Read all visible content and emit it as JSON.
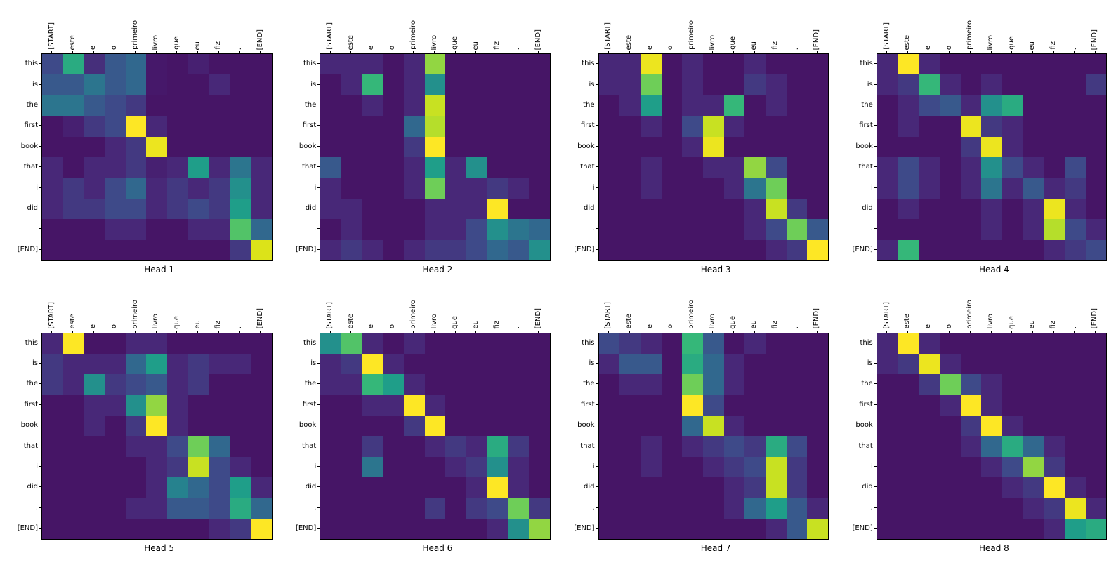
{
  "figure": {
    "background": "#ffffff"
  },
  "chart_data": {
    "type": "heatmap",
    "title": "",
    "layout": {
      "rows": 2,
      "cols": 4,
      "legend": "none",
      "grid": false
    },
    "colormap": "viridis",
    "colormap_stops": [
      "#440154",
      "#482878",
      "#3e4a89",
      "#31688e",
      "#26828e",
      "#1f9e89",
      "#35b779",
      "#6ece58",
      "#b5de2b",
      "#dce319",
      "#fde725"
    ],
    "value_range": [
      0,
      1
    ],
    "x_labels": [
      "[START]",
      "este",
      "e",
      "o",
      "primeiro",
      "livro",
      "que",
      "eu",
      "fiz",
      ".",
      "[END]"
    ],
    "y_labels": [
      "this",
      "is",
      "the",
      "first",
      "book",
      "that",
      "i",
      "did",
      ".",
      "[END]"
    ],
    "heads": [
      {
        "title": "Head 1",
        "values": [
          [
            0.2,
            0.55,
            0.12,
            0.25,
            0.3,
            0.06,
            0.05,
            0.08,
            0.05,
            0.05,
            0.05
          ],
          [
            0.25,
            0.25,
            0.35,
            0.25,
            0.3,
            0.06,
            0.05,
            0.05,
            0.1,
            0.05,
            0.05
          ],
          [
            0.35,
            0.35,
            0.25,
            0.2,
            0.15,
            0.05,
            0.05,
            0.05,
            0.05,
            0.05,
            0.05
          ],
          [
            0.05,
            0.08,
            0.15,
            0.2,
            1.0,
            0.1,
            0.05,
            0.05,
            0.05,
            0.05,
            0.05
          ],
          [
            0.05,
            0.05,
            0.05,
            0.1,
            0.15,
            0.95,
            0.05,
            0.05,
            0.05,
            0.05,
            0.05
          ],
          [
            0.1,
            0.05,
            0.1,
            0.1,
            0.15,
            0.08,
            0.1,
            0.5,
            0.1,
            0.35,
            0.1
          ],
          [
            0.1,
            0.15,
            0.1,
            0.2,
            0.3,
            0.1,
            0.15,
            0.1,
            0.15,
            0.45,
            0.1
          ],
          [
            0.1,
            0.15,
            0.15,
            0.2,
            0.2,
            0.1,
            0.15,
            0.2,
            0.15,
            0.5,
            0.1
          ],
          [
            0.05,
            0.05,
            0.05,
            0.1,
            0.1,
            0.05,
            0.05,
            0.1,
            0.1,
            0.65,
            0.3
          ],
          [
            0.05,
            0.05,
            0.05,
            0.05,
            0.05,
            0.05,
            0.05,
            0.05,
            0.05,
            0.15,
            0.9
          ]
        ]
      },
      {
        "title": "Head 2",
        "values": [
          [
            0.1,
            0.1,
            0.1,
            0.05,
            0.1,
            0.75,
            0.05,
            0.05,
            0.05,
            0.05,
            0.05
          ],
          [
            0.05,
            0.1,
            0.6,
            0.05,
            0.1,
            0.45,
            0.05,
            0.05,
            0.05,
            0.05,
            0.05
          ],
          [
            0.05,
            0.05,
            0.1,
            0.05,
            0.1,
            0.85,
            0.05,
            0.05,
            0.05,
            0.05,
            0.05
          ],
          [
            0.05,
            0.05,
            0.05,
            0.05,
            0.3,
            0.8,
            0.05,
            0.05,
            0.05,
            0.05,
            0.05
          ],
          [
            0.05,
            0.05,
            0.05,
            0.05,
            0.15,
            1.0,
            0.05,
            0.05,
            0.05,
            0.05,
            0.05
          ],
          [
            0.25,
            0.05,
            0.05,
            0.05,
            0.1,
            0.5,
            0.1,
            0.45,
            0.05,
            0.05,
            0.05
          ],
          [
            0.1,
            0.05,
            0.05,
            0.05,
            0.1,
            0.7,
            0.1,
            0.1,
            0.15,
            0.1,
            0.05
          ],
          [
            0.1,
            0.1,
            0.05,
            0.05,
            0.05,
            0.1,
            0.1,
            0.1,
            1.0,
            0.05,
            0.05
          ],
          [
            0.05,
            0.1,
            0.05,
            0.05,
            0.05,
            0.1,
            0.1,
            0.2,
            0.45,
            0.35,
            0.3
          ],
          [
            0.1,
            0.15,
            0.1,
            0.05,
            0.1,
            0.15,
            0.15,
            0.2,
            0.3,
            0.25,
            0.45
          ]
        ]
      },
      {
        "title": "Head 3",
        "values": [
          [
            0.1,
            0.1,
            0.95,
            0.05,
            0.1,
            0.05,
            0.05,
            0.1,
            0.05,
            0.05,
            0.05
          ],
          [
            0.1,
            0.1,
            0.7,
            0.05,
            0.1,
            0.05,
            0.05,
            0.15,
            0.1,
            0.05,
            0.05
          ],
          [
            0.05,
            0.1,
            0.5,
            0.05,
            0.1,
            0.1,
            0.6,
            0.05,
            0.1,
            0.05,
            0.05
          ],
          [
            0.05,
            0.05,
            0.1,
            0.05,
            0.2,
            0.85,
            0.1,
            0.05,
            0.05,
            0.05,
            0.05
          ],
          [
            0.05,
            0.05,
            0.05,
            0.05,
            0.1,
            0.95,
            0.05,
            0.05,
            0.05,
            0.05,
            0.05
          ],
          [
            0.05,
            0.05,
            0.1,
            0.05,
            0.05,
            0.1,
            0.1,
            0.75,
            0.2,
            0.05,
            0.05
          ],
          [
            0.05,
            0.05,
            0.1,
            0.05,
            0.05,
            0.05,
            0.1,
            0.35,
            0.7,
            0.05,
            0.05
          ],
          [
            0.05,
            0.05,
            0.05,
            0.05,
            0.05,
            0.05,
            0.05,
            0.1,
            0.85,
            0.15,
            0.05
          ],
          [
            0.05,
            0.05,
            0.05,
            0.05,
            0.05,
            0.05,
            0.05,
            0.1,
            0.2,
            0.7,
            0.25
          ],
          [
            0.05,
            0.05,
            0.05,
            0.05,
            0.05,
            0.05,
            0.05,
            0.05,
            0.1,
            0.15,
            1.0
          ]
        ]
      },
      {
        "title": "Head 4",
        "values": [
          [
            0.1,
            1.0,
            0.1,
            0.05,
            0.05,
            0.05,
            0.05,
            0.05,
            0.05,
            0.05,
            0.05
          ],
          [
            0.1,
            0.15,
            0.6,
            0.1,
            0.05,
            0.1,
            0.05,
            0.05,
            0.05,
            0.05,
            0.15
          ],
          [
            0.05,
            0.1,
            0.2,
            0.25,
            0.1,
            0.45,
            0.55,
            0.05,
            0.05,
            0.05,
            0.05
          ],
          [
            0.05,
            0.1,
            0.05,
            0.05,
            0.95,
            0.15,
            0.1,
            0.05,
            0.05,
            0.05,
            0.05
          ],
          [
            0.05,
            0.05,
            0.05,
            0.05,
            0.15,
            0.95,
            0.1,
            0.05,
            0.05,
            0.05,
            0.05
          ],
          [
            0.1,
            0.2,
            0.1,
            0.05,
            0.1,
            0.45,
            0.2,
            0.1,
            0.05,
            0.2,
            0.05
          ],
          [
            0.1,
            0.2,
            0.1,
            0.05,
            0.1,
            0.35,
            0.1,
            0.25,
            0.1,
            0.15,
            0.05
          ],
          [
            0.05,
            0.1,
            0.05,
            0.05,
            0.05,
            0.1,
            0.05,
            0.1,
            0.95,
            0.1,
            0.05
          ],
          [
            0.05,
            0.05,
            0.05,
            0.05,
            0.05,
            0.1,
            0.05,
            0.1,
            0.8,
            0.2,
            0.1
          ],
          [
            0.1,
            0.6,
            0.05,
            0.05,
            0.05,
            0.05,
            0.05,
            0.05,
            0.1,
            0.15,
            0.2
          ]
        ]
      },
      {
        "title": "Head 5",
        "values": [
          [
            0.1,
            1.0,
            0.05,
            0.05,
            0.1,
            0.1,
            0.05,
            0.05,
            0.05,
            0.05,
            0.05
          ],
          [
            0.15,
            0.1,
            0.1,
            0.1,
            0.3,
            0.5,
            0.1,
            0.15,
            0.1,
            0.1,
            0.05
          ],
          [
            0.15,
            0.1,
            0.45,
            0.15,
            0.2,
            0.25,
            0.1,
            0.15,
            0.05,
            0.05,
            0.05
          ],
          [
            0.05,
            0.05,
            0.1,
            0.1,
            0.45,
            0.75,
            0.1,
            0.05,
            0.05,
            0.05,
            0.05
          ],
          [
            0.05,
            0.05,
            0.1,
            0.05,
            0.15,
            1.0,
            0.1,
            0.05,
            0.05,
            0.05,
            0.05
          ],
          [
            0.05,
            0.05,
            0.05,
            0.05,
            0.1,
            0.1,
            0.2,
            0.7,
            0.3,
            0.05,
            0.05
          ],
          [
            0.05,
            0.05,
            0.05,
            0.05,
            0.05,
            0.1,
            0.15,
            0.85,
            0.2,
            0.1,
            0.05
          ],
          [
            0.05,
            0.05,
            0.05,
            0.05,
            0.05,
            0.1,
            0.4,
            0.3,
            0.2,
            0.5,
            0.1
          ],
          [
            0.05,
            0.05,
            0.05,
            0.05,
            0.1,
            0.1,
            0.25,
            0.25,
            0.2,
            0.55,
            0.3
          ],
          [
            0.05,
            0.05,
            0.05,
            0.05,
            0.05,
            0.05,
            0.05,
            0.05,
            0.1,
            0.15,
            1.0
          ]
        ]
      },
      {
        "title": "Head 6",
        "values": [
          [
            0.45,
            0.65,
            0.1,
            0.05,
            0.1,
            0.05,
            0.05,
            0.05,
            0.05,
            0.05,
            0.05
          ],
          [
            0.1,
            0.15,
            1.0,
            0.1,
            0.05,
            0.05,
            0.05,
            0.05,
            0.05,
            0.05,
            0.05
          ],
          [
            0.1,
            0.1,
            0.6,
            0.5,
            0.1,
            0.05,
            0.05,
            0.05,
            0.05,
            0.05,
            0.05
          ],
          [
            0.05,
            0.05,
            0.1,
            0.1,
            1.0,
            0.1,
            0.05,
            0.05,
            0.05,
            0.05,
            0.05
          ],
          [
            0.05,
            0.05,
            0.05,
            0.05,
            0.15,
            1.0,
            0.05,
            0.05,
            0.05,
            0.05,
            0.05
          ],
          [
            0.05,
            0.05,
            0.15,
            0.05,
            0.05,
            0.1,
            0.15,
            0.1,
            0.55,
            0.15,
            0.05
          ],
          [
            0.05,
            0.05,
            0.35,
            0.05,
            0.05,
            0.05,
            0.1,
            0.15,
            0.45,
            0.1,
            0.05
          ],
          [
            0.05,
            0.05,
            0.05,
            0.05,
            0.05,
            0.05,
            0.05,
            0.1,
            1.0,
            0.1,
            0.05
          ],
          [
            0.05,
            0.05,
            0.05,
            0.05,
            0.05,
            0.15,
            0.05,
            0.15,
            0.2,
            0.7,
            0.15
          ],
          [
            0.05,
            0.05,
            0.05,
            0.05,
            0.05,
            0.05,
            0.05,
            0.05,
            0.1,
            0.45,
            0.75
          ]
        ]
      },
      {
        "title": "Head 7",
        "values": [
          [
            0.2,
            0.15,
            0.1,
            0.05,
            0.6,
            0.25,
            0.05,
            0.1,
            0.05,
            0.05,
            0.05
          ],
          [
            0.1,
            0.25,
            0.25,
            0.05,
            0.55,
            0.3,
            0.1,
            0.05,
            0.05,
            0.05,
            0.05
          ],
          [
            0.05,
            0.1,
            0.1,
            0.05,
            0.7,
            0.3,
            0.1,
            0.05,
            0.05,
            0.05,
            0.05
          ],
          [
            0.05,
            0.05,
            0.05,
            0.05,
            1.0,
            0.2,
            0.05,
            0.05,
            0.05,
            0.05,
            0.05
          ],
          [
            0.05,
            0.05,
            0.05,
            0.05,
            0.3,
            0.85,
            0.1,
            0.05,
            0.05,
            0.05,
            0.05
          ],
          [
            0.05,
            0.05,
            0.1,
            0.05,
            0.1,
            0.15,
            0.2,
            0.15,
            0.55,
            0.2,
            0.05
          ],
          [
            0.05,
            0.05,
            0.1,
            0.05,
            0.05,
            0.1,
            0.15,
            0.2,
            0.85,
            0.15,
            0.05
          ],
          [
            0.05,
            0.05,
            0.05,
            0.05,
            0.05,
            0.05,
            0.1,
            0.15,
            0.85,
            0.15,
            0.05
          ],
          [
            0.05,
            0.05,
            0.05,
            0.05,
            0.05,
            0.05,
            0.1,
            0.3,
            0.5,
            0.25,
            0.1
          ],
          [
            0.05,
            0.05,
            0.05,
            0.05,
            0.05,
            0.05,
            0.05,
            0.05,
            0.1,
            0.25,
            0.85
          ]
        ]
      },
      {
        "title": "Head 8",
        "values": [
          [
            0.1,
            1.0,
            0.1,
            0.05,
            0.05,
            0.05,
            0.05,
            0.05,
            0.05,
            0.05,
            0.05
          ],
          [
            0.1,
            0.15,
            0.95,
            0.1,
            0.05,
            0.05,
            0.05,
            0.05,
            0.05,
            0.05,
            0.05
          ],
          [
            0.05,
            0.05,
            0.15,
            0.7,
            0.2,
            0.1,
            0.05,
            0.05,
            0.05,
            0.05,
            0.05
          ],
          [
            0.05,
            0.05,
            0.05,
            0.1,
            1.0,
            0.1,
            0.05,
            0.05,
            0.05,
            0.05,
            0.05
          ],
          [
            0.05,
            0.05,
            0.05,
            0.05,
            0.15,
            1.0,
            0.1,
            0.05,
            0.05,
            0.05,
            0.05
          ],
          [
            0.05,
            0.05,
            0.05,
            0.05,
            0.1,
            0.3,
            0.55,
            0.3,
            0.1,
            0.05,
            0.05
          ],
          [
            0.05,
            0.05,
            0.05,
            0.05,
            0.05,
            0.1,
            0.2,
            0.75,
            0.15,
            0.05,
            0.05
          ],
          [
            0.05,
            0.05,
            0.05,
            0.05,
            0.05,
            0.05,
            0.1,
            0.15,
            1.0,
            0.1,
            0.05
          ],
          [
            0.05,
            0.05,
            0.05,
            0.05,
            0.05,
            0.05,
            0.05,
            0.1,
            0.15,
            0.95,
            0.1
          ],
          [
            0.05,
            0.05,
            0.05,
            0.05,
            0.05,
            0.05,
            0.05,
            0.05,
            0.1,
            0.5,
            0.55
          ]
        ]
      }
    ]
  }
}
